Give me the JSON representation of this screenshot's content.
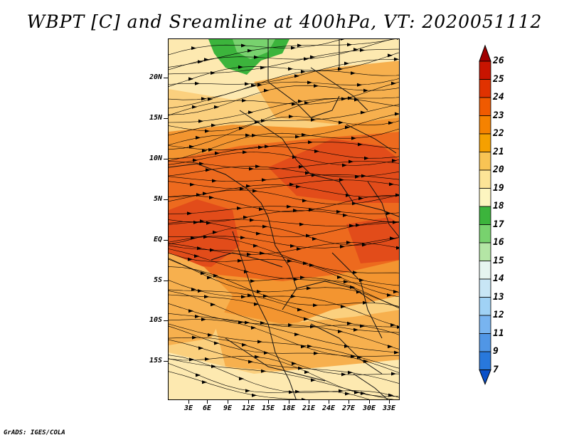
{
  "title": "WBPT [C] and Sreamline at 400hPa, VT: 2020051112",
  "footer": "GrADS: IGES/COLA",
  "lat_labels": [
    "20N",
    "15N",
    "10N",
    "5N",
    "EQ",
    "5S",
    "10S",
    "15S"
  ],
  "lon_labels": [
    "3E",
    "6E",
    "9E",
    "12E",
    "15E",
    "18E",
    "21E",
    "24E",
    "27E",
    "30E",
    "33E"
  ],
  "colorbar": {
    "labels": [
      "26",
      "25",
      "24",
      "23",
      "22",
      "21",
      "20",
      "19",
      "18",
      "17",
      "16",
      "15",
      "14",
      "13",
      "12",
      "11",
      "9",
      "7"
    ],
    "colors": [
      "#a00000",
      "#c81400",
      "#e03200",
      "#f05a00",
      "#f58200",
      "#f5a000",
      "#f8c454",
      "#fce497",
      "#fdf5c0",
      "#3cb43c",
      "#78d26e",
      "#b4e6a5",
      "#e6f5f0",
      "#c8e6f5",
      "#a0d2f5",
      "#78b4f0",
      "#5096e6",
      "#2878dc",
      "#0a50c8"
    ]
  },
  "map_colors": {
    "red": "#e24c1a",
    "dark_orange": "#ed6a1e",
    "orange": "#f39530",
    "light_orange": "#f7b04e",
    "yellow": "#fbd07e",
    "pale": "#fde9b0",
    "green": "#3cb43c",
    "light_green": "#78d26e"
  }
}
